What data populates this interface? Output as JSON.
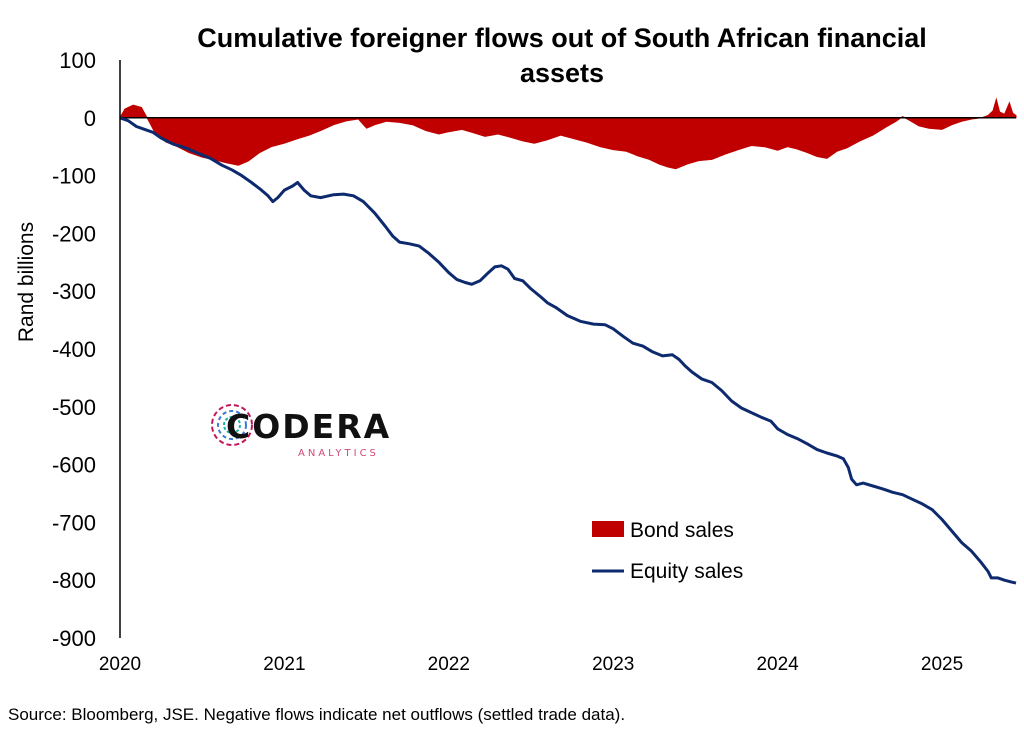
{
  "chart_data": {
    "type": "area",
    "title_line1": "Cumulative foreigner flows out of South African financial",
    "title_line2": "assets",
    "ylabel": "Rand billions",
    "xlabel": "",
    "ylim": [
      -900,
      100
    ],
    "yticks": [
      "100",
      "0",
      "-100",
      "-200",
      "-300",
      "-400",
      "-500",
      "-600",
      "-700",
      "-800",
      "-900"
    ],
    "xlim": [
      2020.0,
      2025.45
    ],
    "xticks": [
      "2020",
      "2021",
      "2022",
      "2023",
      "2024",
      "2025"
    ],
    "colors": {
      "bond": "#c00000",
      "equity": "#0d2a6e"
    },
    "legend_position": "lower-right",
    "series": [
      {
        "name": "Bond sales",
        "kind": "area",
        "points": [
          [
            2020.0,
            0
          ],
          [
            2020.03,
            15
          ],
          [
            2020.08,
            22
          ],
          [
            2020.13,
            18
          ],
          [
            2020.18,
            -8
          ],
          [
            2020.22,
            -30
          ],
          [
            2020.28,
            -42
          ],
          [
            2020.35,
            -50
          ],
          [
            2020.42,
            -60
          ],
          [
            2020.5,
            -68
          ],
          [
            2020.58,
            -73
          ],
          [
            2020.65,
            -78
          ],
          [
            2020.72,
            -82
          ],
          [
            2020.78,
            -75
          ],
          [
            2020.85,
            -60
          ],
          [
            2020.92,
            -50
          ],
          [
            2021.0,
            -44
          ],
          [
            2021.08,
            -36
          ],
          [
            2021.15,
            -30
          ],
          [
            2021.22,
            -22
          ],
          [
            2021.3,
            -12
          ],
          [
            2021.38,
            -5
          ],
          [
            2021.45,
            -2
          ],
          [
            2021.5,
            -18
          ],
          [
            2021.55,
            -12
          ],
          [
            2021.62,
            -6
          ],
          [
            2021.7,
            -8
          ],
          [
            2021.78,
            -12
          ],
          [
            2021.86,
            -22
          ],
          [
            2021.94,
            -28
          ],
          [
            2022.0,
            -24
          ],
          [
            2022.08,
            -20
          ],
          [
            2022.15,
            -26
          ],
          [
            2022.22,
            -32
          ],
          [
            2022.3,
            -28
          ],
          [
            2022.38,
            -34
          ],
          [
            2022.45,
            -40
          ],
          [
            2022.52,
            -44
          ],
          [
            2022.6,
            -38
          ],
          [
            2022.68,
            -30
          ],
          [
            2022.76,
            -36
          ],
          [
            2022.84,
            -42
          ],
          [
            2022.92,
            -50
          ],
          [
            2023.0,
            -55
          ],
          [
            2023.08,
            -58
          ],
          [
            2023.15,
            -66
          ],
          [
            2023.22,
            -72
          ],
          [
            2023.28,
            -80
          ],
          [
            2023.33,
            -85
          ],
          [
            2023.38,
            -88
          ],
          [
            2023.45,
            -80
          ],
          [
            2023.52,
            -74
          ],
          [
            2023.6,
            -72
          ],
          [
            2023.68,
            -63
          ],
          [
            2023.76,
            -55
          ],
          [
            2023.84,
            -48
          ],
          [
            2023.92,
            -50
          ],
          [
            2024.0,
            -56
          ],
          [
            2024.06,
            -50
          ],
          [
            2024.12,
            -54
          ],
          [
            2024.18,
            -60
          ],
          [
            2024.24,
            -67
          ],
          [
            2024.3,
            -70
          ],
          [
            2024.36,
            -58
          ],
          [
            2024.42,
            -52
          ],
          [
            2024.5,
            -40
          ],
          [
            2024.58,
            -30
          ],
          [
            2024.66,
            -16
          ],
          [
            2024.72,
            -6
          ],
          [
            2024.76,
            2
          ],
          [
            2024.8,
            -4
          ],
          [
            2024.86,
            -14
          ],
          [
            2024.92,
            -18
          ],
          [
            2025.0,
            -20
          ],
          [
            2025.06,
            -12
          ],
          [
            2025.12,
            -6
          ],
          [
            2025.18,
            -2
          ],
          [
            2025.24,
            0
          ],
          [
            2025.28,
            4
          ],
          [
            2025.31,
            12
          ],
          [
            2025.33,
            32
          ],
          [
            2025.35,
            10
          ],
          [
            2025.38,
            6
          ],
          [
            2025.41,
            26
          ],
          [
            2025.43,
            8
          ],
          [
            2025.45,
            4
          ]
        ]
      },
      {
        "name": "Equity sales",
        "kind": "line",
        "points": [
          [
            2020.0,
            0
          ],
          [
            2020.05,
            -5
          ],
          [
            2020.1,
            -15
          ],
          [
            2020.15,
            -20
          ],
          [
            2020.2,
            -25
          ],
          [
            2020.25,
            -35
          ],
          [
            2020.32,
            -45
          ],
          [
            2020.4,
            -52
          ],
          [
            2020.48,
            -62
          ],
          [
            2020.55,
            -70
          ],
          [
            2020.62,
            -82
          ],
          [
            2020.68,
            -90
          ],
          [
            2020.74,
            -100
          ],
          [
            2020.8,
            -112
          ],
          [
            2020.86,
            -125
          ],
          [
            2020.9,
            -135
          ],
          [
            2020.93,
            -145
          ],
          [
            2020.96,
            -138
          ],
          [
            2021.0,
            -125
          ],
          [
            2021.05,
            -118
          ],
          [
            2021.08,
            -112
          ],
          [
            2021.12,
            -125
          ],
          [
            2021.16,
            -135
          ],
          [
            2021.22,
            -138
          ],
          [
            2021.3,
            -133
          ],
          [
            2021.36,
            -132
          ],
          [
            2021.42,
            -135
          ],
          [
            2021.48,
            -145
          ],
          [
            2021.55,
            -165
          ],
          [
            2021.62,
            -190
          ],
          [
            2021.66,
            -205
          ],
          [
            2021.7,
            -215
          ],
          [
            2021.76,
            -218
          ],
          [
            2021.82,
            -222
          ],
          [
            2021.88,
            -235
          ],
          [
            2021.94,
            -250
          ],
          [
            2022.0,
            -268
          ],
          [
            2022.05,
            -280
          ],
          [
            2022.1,
            -285
          ],
          [
            2022.14,
            -288
          ],
          [
            2022.19,
            -282
          ],
          [
            2022.24,
            -268
          ],
          [
            2022.28,
            -258
          ],
          [
            2022.32,
            -256
          ],
          [
            2022.36,
            -262
          ],
          [
            2022.4,
            -278
          ],
          [
            2022.45,
            -282
          ],
          [
            2022.5,
            -296
          ],
          [
            2022.56,
            -310
          ],
          [
            2022.6,
            -320
          ],
          [
            2022.65,
            -328
          ],
          [
            2022.72,
            -342
          ],
          [
            2022.8,
            -352
          ],
          [
            2022.88,
            -357
          ],
          [
            2022.95,
            -358
          ],
          [
            2023.0,
            -365
          ],
          [
            2023.06,
            -378
          ],
          [
            2023.12,
            -390
          ],
          [
            2023.18,
            -395
          ],
          [
            2023.24,
            -405
          ],
          [
            2023.3,
            -412
          ],
          [
            2023.36,
            -410
          ],
          [
            2023.4,
            -418
          ],
          [
            2023.44,
            -430
          ],
          [
            2023.48,
            -440
          ],
          [
            2023.54,
            -452
          ],
          [
            2023.6,
            -458
          ],
          [
            2023.66,
            -472
          ],
          [
            2023.72,
            -490
          ],
          [
            2023.78,
            -502
          ],
          [
            2023.84,
            -510
          ],
          [
            2023.9,
            -518
          ],
          [
            2023.96,
            -525
          ],
          [
            2024.0,
            -538
          ],
          [
            2024.06,
            -548
          ],
          [
            2024.12,
            -555
          ],
          [
            2024.18,
            -564
          ],
          [
            2024.24,
            -574
          ],
          [
            2024.3,
            -580
          ],
          [
            2024.36,
            -585
          ],
          [
            2024.4,
            -590
          ],
          [
            2024.43,
            -605
          ],
          [
            2024.45,
            -625
          ],
          [
            2024.48,
            -635
          ],
          [
            2024.52,
            -632
          ],
          [
            2024.58,
            -637
          ],
          [
            2024.64,
            -642
          ],
          [
            2024.7,
            -648
          ],
          [
            2024.76,
            -652
          ],
          [
            2024.82,
            -660
          ],
          [
            2024.88,
            -668
          ],
          [
            2024.94,
            -678
          ],
          [
            2025.0,
            -695
          ],
          [
            2025.06,
            -715
          ],
          [
            2025.12,
            -735
          ],
          [
            2025.18,
            -750
          ],
          [
            2025.24,
            -770
          ],
          [
            2025.28,
            -785
          ],
          [
            2025.3,
            -796
          ],
          [
            2025.34,
            -796
          ],
          [
            2025.38,
            -800
          ],
          [
            2025.42,
            -803
          ],
          [
            2025.45,
            -805
          ]
        ]
      }
    ]
  },
  "logo": {
    "word": "CODERA",
    "sub": "ANALYTICS"
  },
  "source_note": "Source: Bloomberg, JSE. Negative flows indicate net outflows (settled trade data)."
}
